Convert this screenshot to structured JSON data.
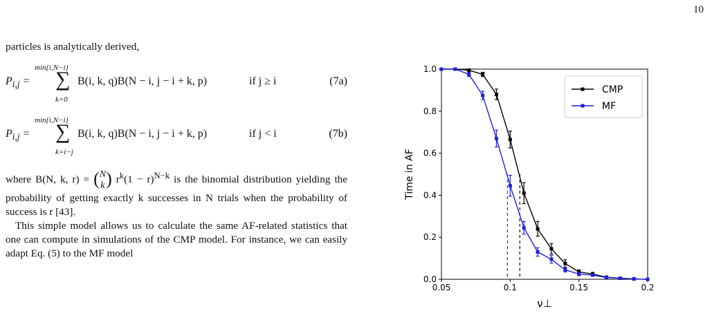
{
  "page_number": "10",
  "text": {
    "intro": "particles is analytically derived,",
    "eq_a": {
      "lhs": "P",
      "lhs_sub": "i,j",
      "sum_upper": "min{i,N−i}",
      "sum_lower": "k=0",
      "rhs": "B(i, k, q)B(N − i, j − i + k, p)",
      "condition": "if j ≥ i",
      "number": "(7a)"
    },
    "eq_b": {
      "lhs": "P",
      "lhs_sub": "i,j",
      "sum_upper": "min{i,N−i}",
      "sum_lower": "k=i−j",
      "rhs": "B(i, k, q)B(N − i, j − i + k, p)",
      "condition": "if j < i",
      "number": "(7b)"
    },
    "p1_start": "where B(N, k, r) = ",
    "binom_top": "N",
    "binom_bottom": "k",
    "p1_mid": " r",
    "p1_exp1": "k",
    "p1_mid2": "(1 − r)",
    "p1_exp2": "N−k",
    "p1_end": " is the binomial distribution yielding the probability of getting exactly k successes in N trials when the probability of success is r [43].",
    "p2": "This simple model allows us to calculate the same AF-related statistics that one can compute in simulations of the CMP model. For instance, we can easily adapt Eq. (5) to the MF model"
  },
  "chart_data": {
    "type": "line",
    "xlabel": "ν⊥",
    "ylabel": "Time in AF",
    "xlim": [
      0.05,
      0.2
    ],
    "ylim": [
      0.0,
      1.0
    ],
    "xticks": [
      "0.05",
      "0.1",
      "0.15",
      "0.2"
    ],
    "yticks": [
      "0.0",
      "0.2",
      "0.4",
      "0.6",
      "0.8",
      "1.0"
    ],
    "legend_position": "top-right",
    "series": [
      {
        "name": "CMP",
        "color": "#000000",
        "x": [
          0.05,
          0.06,
          0.07,
          0.08,
          0.09,
          0.1,
          0.11,
          0.12,
          0.13,
          0.14,
          0.15,
          0.16,
          0.17,
          0.18,
          0.19,
          0.2
        ],
        "y": [
          1.0,
          1.0,
          0.995,
          0.975,
          0.88,
          0.665,
          0.41,
          0.24,
          0.145,
          0.075,
          0.035,
          0.025,
          0.01,
          0.005,
          0.002,
          0.0
        ],
        "err": [
          0.0,
          0.0,
          0.005,
          0.01,
          0.025,
          0.04,
          0.05,
          0.035,
          0.025,
          0.018,
          0.01,
          0.008,
          0.004,
          0.003,
          0.002,
          0.0
        ]
      },
      {
        "name": "MF",
        "color": "#1f1fe0",
        "x": [
          0.05,
          0.06,
          0.07,
          0.08,
          0.09,
          0.1,
          0.11,
          0.12,
          0.13,
          0.14,
          0.15,
          0.16,
          0.17,
          0.18,
          0.19,
          0.2
        ],
        "y": [
          1.0,
          1.0,
          0.975,
          0.875,
          0.67,
          0.445,
          0.245,
          0.13,
          0.095,
          0.045,
          0.025,
          0.02,
          0.008,
          0.005,
          0.002,
          0.0
        ],
        "err": [
          0.0,
          0.0,
          0.01,
          0.02,
          0.04,
          0.05,
          0.03,
          0.02,
          0.018,
          0.01,
          0.008,
          0.006,
          0.004,
          0.003,
          0.002,
          0.0
        ]
      }
    ],
    "vlines": [
      {
        "x": 0.098,
        "color": "#1f1fe0",
        "y_top": 0.5
      },
      {
        "x": 0.107,
        "color": "#000000",
        "y_top": 0.5
      }
    ]
  }
}
